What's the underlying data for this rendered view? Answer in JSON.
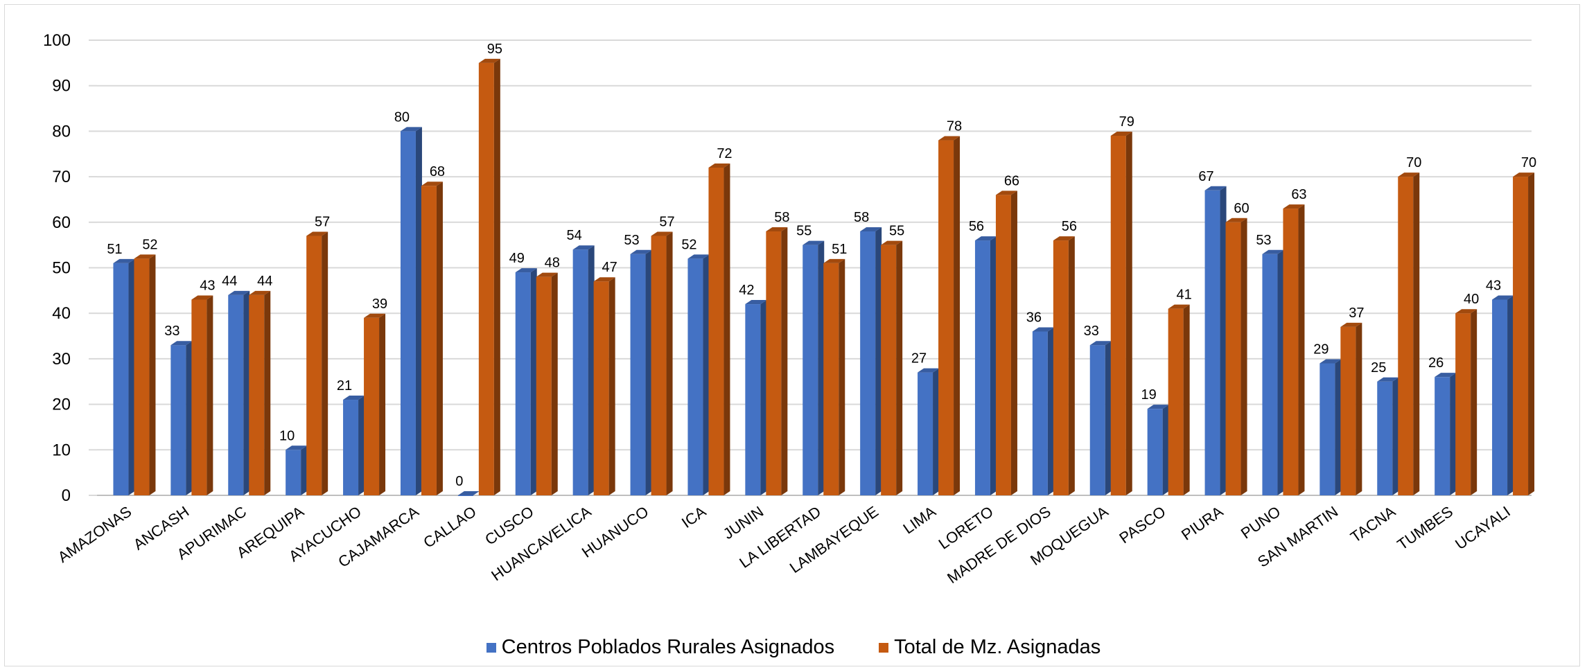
{
  "chart_data": {
    "type": "bar",
    "categories": [
      "AMAZONAS",
      "ANCASH",
      "APURIMAC",
      "AREQUIPA",
      "AYACUCHO",
      "CAJAMARCA",
      "CALLAO",
      "CUSCO",
      "HUANCAVELICA",
      "HUANUCO",
      "ICA",
      "JUNIN",
      "LA LIBERTAD",
      "LAMBAYEQUE",
      "LIMA",
      "LORETO",
      "MADRE DE DIOS",
      "MOQUEGUA",
      "PASCO",
      "PIURA",
      "PUNO",
      "SAN MARTIN",
      "TACNA",
      "TUMBES",
      "UCAYALI"
    ],
    "series": [
      {
        "name": "Centros Poblados Rurales Asignados",
        "color": "#4472C4",
        "values": [
          51,
          33,
          44,
          10,
          21,
          80,
          0,
          49,
          54,
          53,
          52,
          42,
          55,
          58,
          27,
          56,
          36,
          33,
          19,
          67,
          53,
          29,
          25,
          26,
          43
        ]
      },
      {
        "name": "Total de Mz. Asignadas",
        "color": "#C55A11",
        "values": [
          52,
          43,
          44,
          57,
          39,
          68,
          95,
          48,
          47,
          57,
          72,
          58,
          51,
          55,
          78,
          66,
          56,
          79,
          41,
          60,
          63,
          37,
          70,
          40,
          70
        ]
      }
    ],
    "yticks": [
      "0",
      "10",
      "20",
      "30",
      "40",
      "50",
      "60",
      "70",
      "80",
      "90",
      "100"
    ],
    "ylim": [
      0,
      100
    ],
    "grid": true,
    "legend_position": "bottom",
    "data_labels": true
  }
}
